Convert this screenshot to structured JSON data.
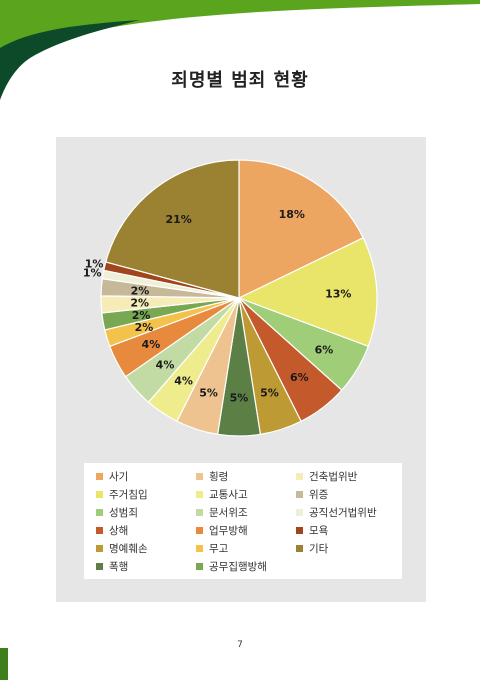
{
  "page": {
    "title": "죄명별 범죄 현황",
    "page_number": "7"
  },
  "colors": {
    "header_green": "#5aa51d",
    "header_dark": "#0d4a2a",
    "panel": "#e6e6e6"
  },
  "chart_data": {
    "type": "pie",
    "title": "",
    "start": "12 o'clock, clockwise",
    "legend_position": "bottom",
    "slices": [
      {
        "label": "사기",
        "value": 18,
        "value_label": "18%",
        "color": "#eda562"
      },
      {
        "label": "주거침입",
        "value": 13,
        "value_label": "13%",
        "color": "#e9e46a"
      },
      {
        "label": "성범죄",
        "value": 6,
        "value_label": "6%",
        "color": "#9fcd78"
      },
      {
        "label": "상해",
        "value": 6,
        "value_label": "6%",
        "color": "#c45a2c"
      },
      {
        "label": "명예훼손",
        "value": 5,
        "value_label": "5%",
        "color": "#bd9a34"
      },
      {
        "label": "폭행",
        "value": 5,
        "value_label": "5%",
        "color": "#5b7f44"
      },
      {
        "label": "횡령",
        "value": 5,
        "value_label": "5%",
        "color": "#efc38f"
      },
      {
        "label": "교통사고",
        "value": 4,
        "value_label": "4%",
        "color": "#efec8e"
      },
      {
        "label": "문서위조",
        "value": 4,
        "value_label": "4%",
        "color": "#c2dba5"
      },
      {
        "label": "업무방해",
        "value": 4,
        "value_label": "4%",
        "color": "#e88a3e"
      },
      {
        "label": "무고",
        "value": 2,
        "value_label": "2%",
        "color": "#f2c24a"
      },
      {
        "label": "공무집행방해",
        "value": 2,
        "value_label": "2%",
        "color": "#78a852"
      },
      {
        "label": "건축법위반",
        "value": 2,
        "value_label": "2%",
        "color": "#f5ecb8"
      },
      {
        "label": "위증",
        "value": 2,
        "value_label": "2%",
        "color": "#c7b89a"
      },
      {
        "label": "공직선거법위반",
        "value": 1,
        "value_label": "1%",
        "color": "#eef0d8"
      },
      {
        "label": "모욕",
        "value": 1,
        "value_label": "1%",
        "color": "#a0451c"
      },
      {
        "label": "기타",
        "value": 21,
        "value_label": "21%",
        "color": "#9b8132"
      }
    ]
  }
}
